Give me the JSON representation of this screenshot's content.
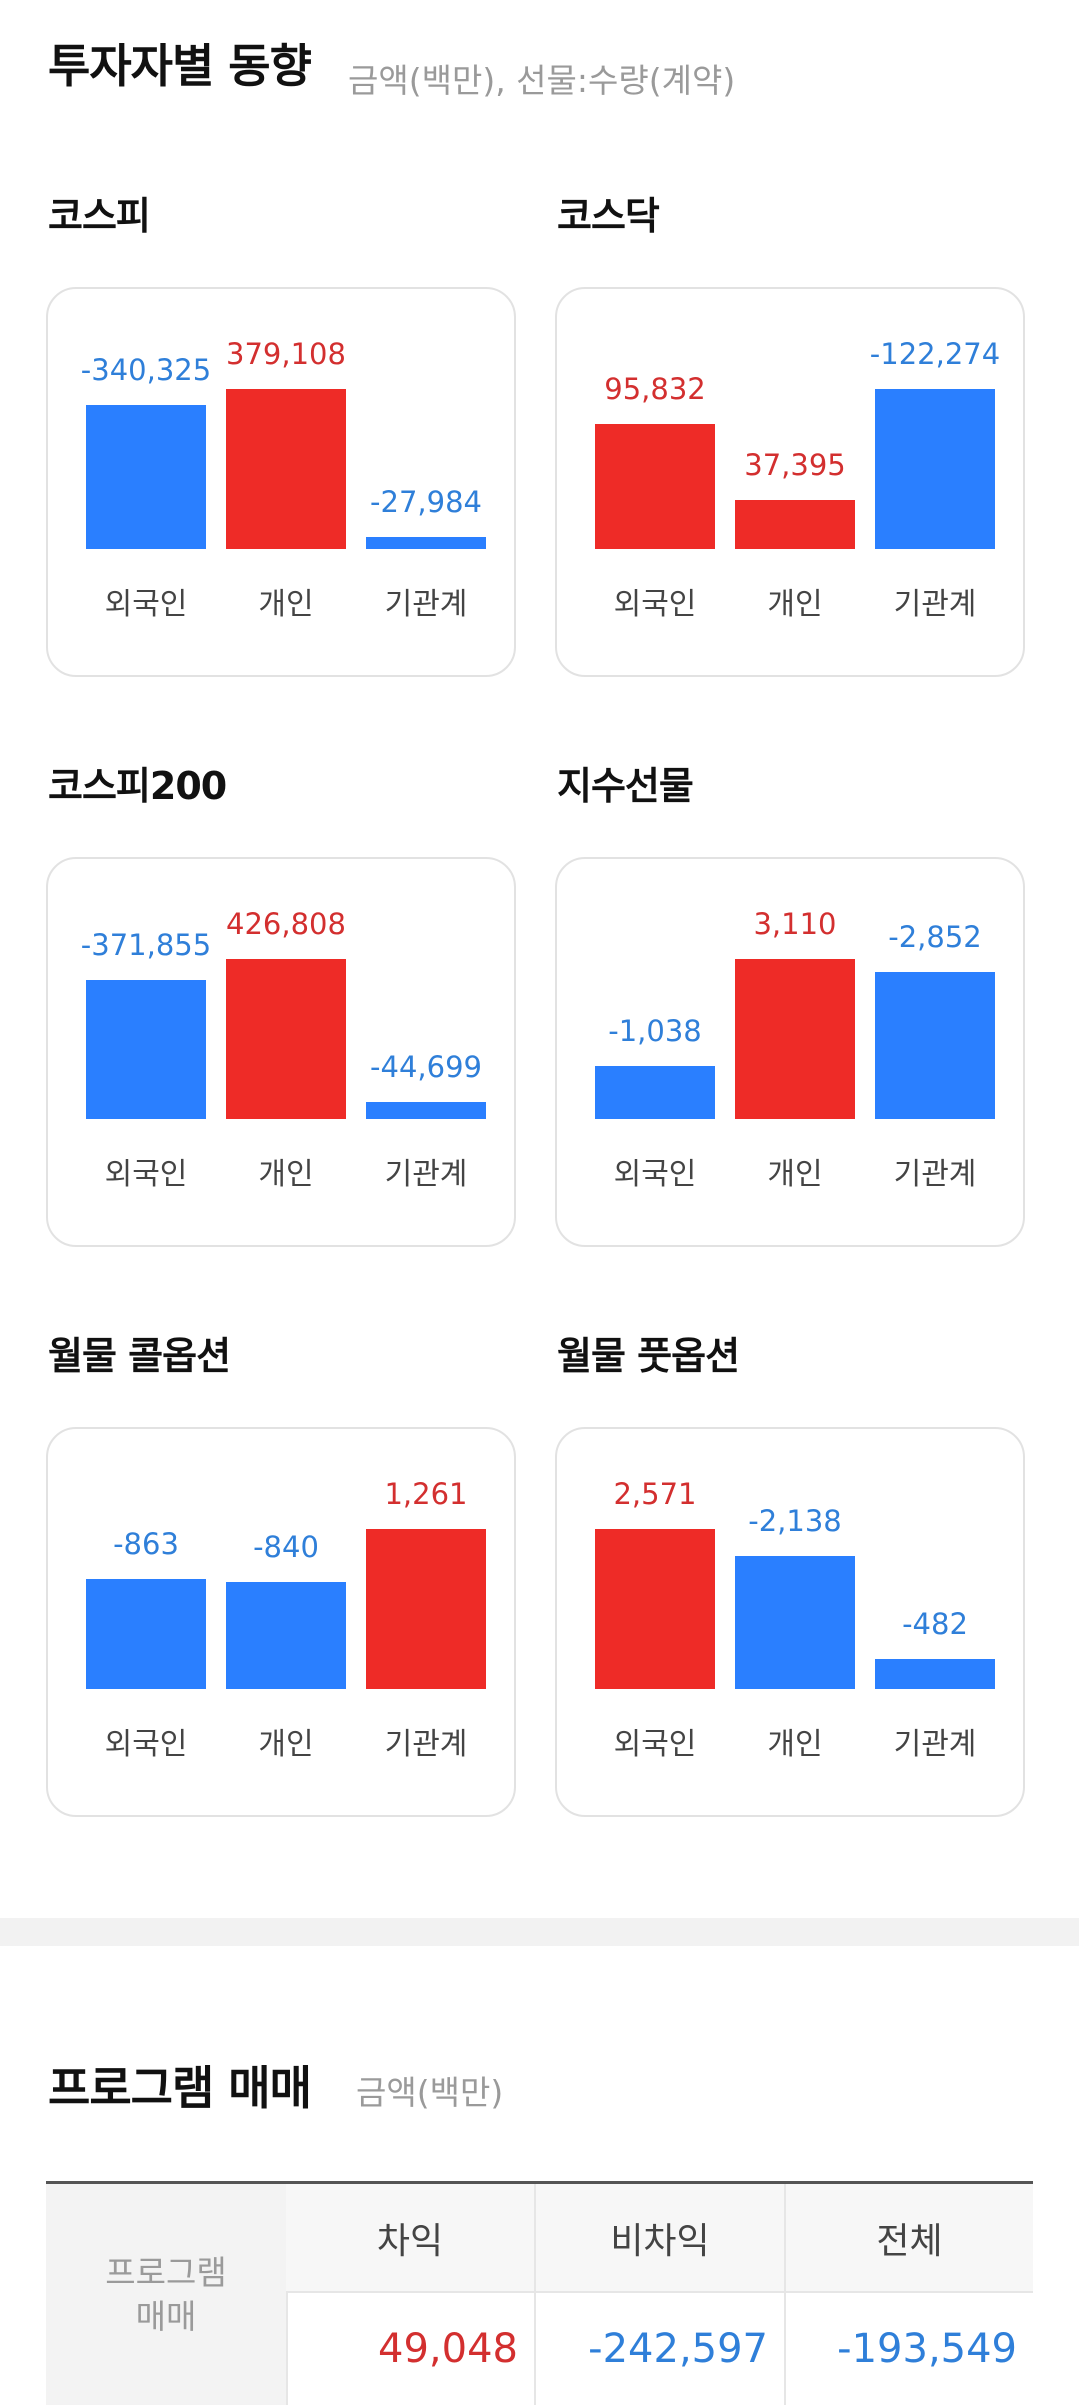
{
  "header": {
    "title": "투자자별 동향",
    "subtitle": "금액(백만), 선물:수량(계약)"
  },
  "colors": {
    "positive": "#ee2b27",
    "negative": "#2a7fff",
    "positive_text": "#d32f2f",
    "negative_text": "#2f7fd9"
  },
  "charts": [
    {
      "title": "코스피",
      "categories": [
        "외국인",
        "개인",
        "기관계"
      ],
      "values": [
        -340325,
        379108,
        -27984
      ],
      "labels": [
        "-340,325",
        "379,108",
        "-27,984"
      ]
    },
    {
      "title": "코스닥",
      "categories": [
        "외국인",
        "개인",
        "기관계"
      ],
      "values": [
        95832,
        37395,
        -122274
      ],
      "labels": [
        "95,832",
        "37,395",
        "-122,274"
      ]
    },
    {
      "title": "코스피200",
      "categories": [
        "외국인",
        "개인",
        "기관계"
      ],
      "values": [
        -371855,
        426808,
        -44699
      ],
      "labels": [
        "-371,855",
        "426,808",
        "-44,699"
      ]
    },
    {
      "title": "지수선물",
      "categories": [
        "외국인",
        "개인",
        "기관계"
      ],
      "values": [
        -1038,
        3110,
        -2852
      ],
      "labels": [
        "-1,038",
        "3,110",
        "-2,852"
      ]
    },
    {
      "title": "월물 콜옵션",
      "categories": [
        "외국인",
        "개인",
        "기관계"
      ],
      "values": [
        -863,
        -840,
        1261
      ],
      "labels": [
        "-863",
        "-840",
        "1,261"
      ]
    },
    {
      "title": "월물 풋옵션",
      "categories": [
        "외국인",
        "개인",
        "기관계"
      ],
      "values": [
        2571,
        -2138,
        -482
      ],
      "labels": [
        "2,571",
        "-2,138",
        "-482"
      ]
    }
  ],
  "chart_data": [
    {
      "type": "bar",
      "title": "코스피",
      "categories": [
        "외국인",
        "개인",
        "기관계"
      ],
      "values": [
        -340325,
        379108,
        -27984
      ]
    },
    {
      "type": "bar",
      "title": "코스닥",
      "categories": [
        "외국인",
        "개인",
        "기관계"
      ],
      "values": [
        95832,
        37395,
        -122274
      ]
    },
    {
      "type": "bar",
      "title": "코스피200",
      "categories": [
        "외국인",
        "개인",
        "기관계"
      ],
      "values": [
        -371855,
        426808,
        -44699
      ]
    },
    {
      "type": "bar",
      "title": "지수선물",
      "categories": [
        "외국인",
        "개인",
        "기관계"
      ],
      "values": [
        -1038,
        3110,
        -2852
      ]
    },
    {
      "type": "bar",
      "title": "월물 콜옵션",
      "categories": [
        "외국인",
        "개인",
        "기관계"
      ],
      "values": [
        -863,
        -840,
        1261
      ]
    },
    {
      "type": "bar",
      "title": "월물 풋옵션",
      "categories": [
        "외국인",
        "개인",
        "기관계"
      ],
      "values": [
        2571,
        -2138,
        -482
      ]
    }
  ],
  "program": {
    "title": "프로그램 매매",
    "subtitle": "금액(백만)",
    "row_label_1": "프로그램",
    "row_label_2": "매매",
    "columns": [
      "차익",
      "비차익",
      "전체"
    ],
    "values": [
      "49,048",
      "-242,597",
      "-193,549"
    ]
  }
}
